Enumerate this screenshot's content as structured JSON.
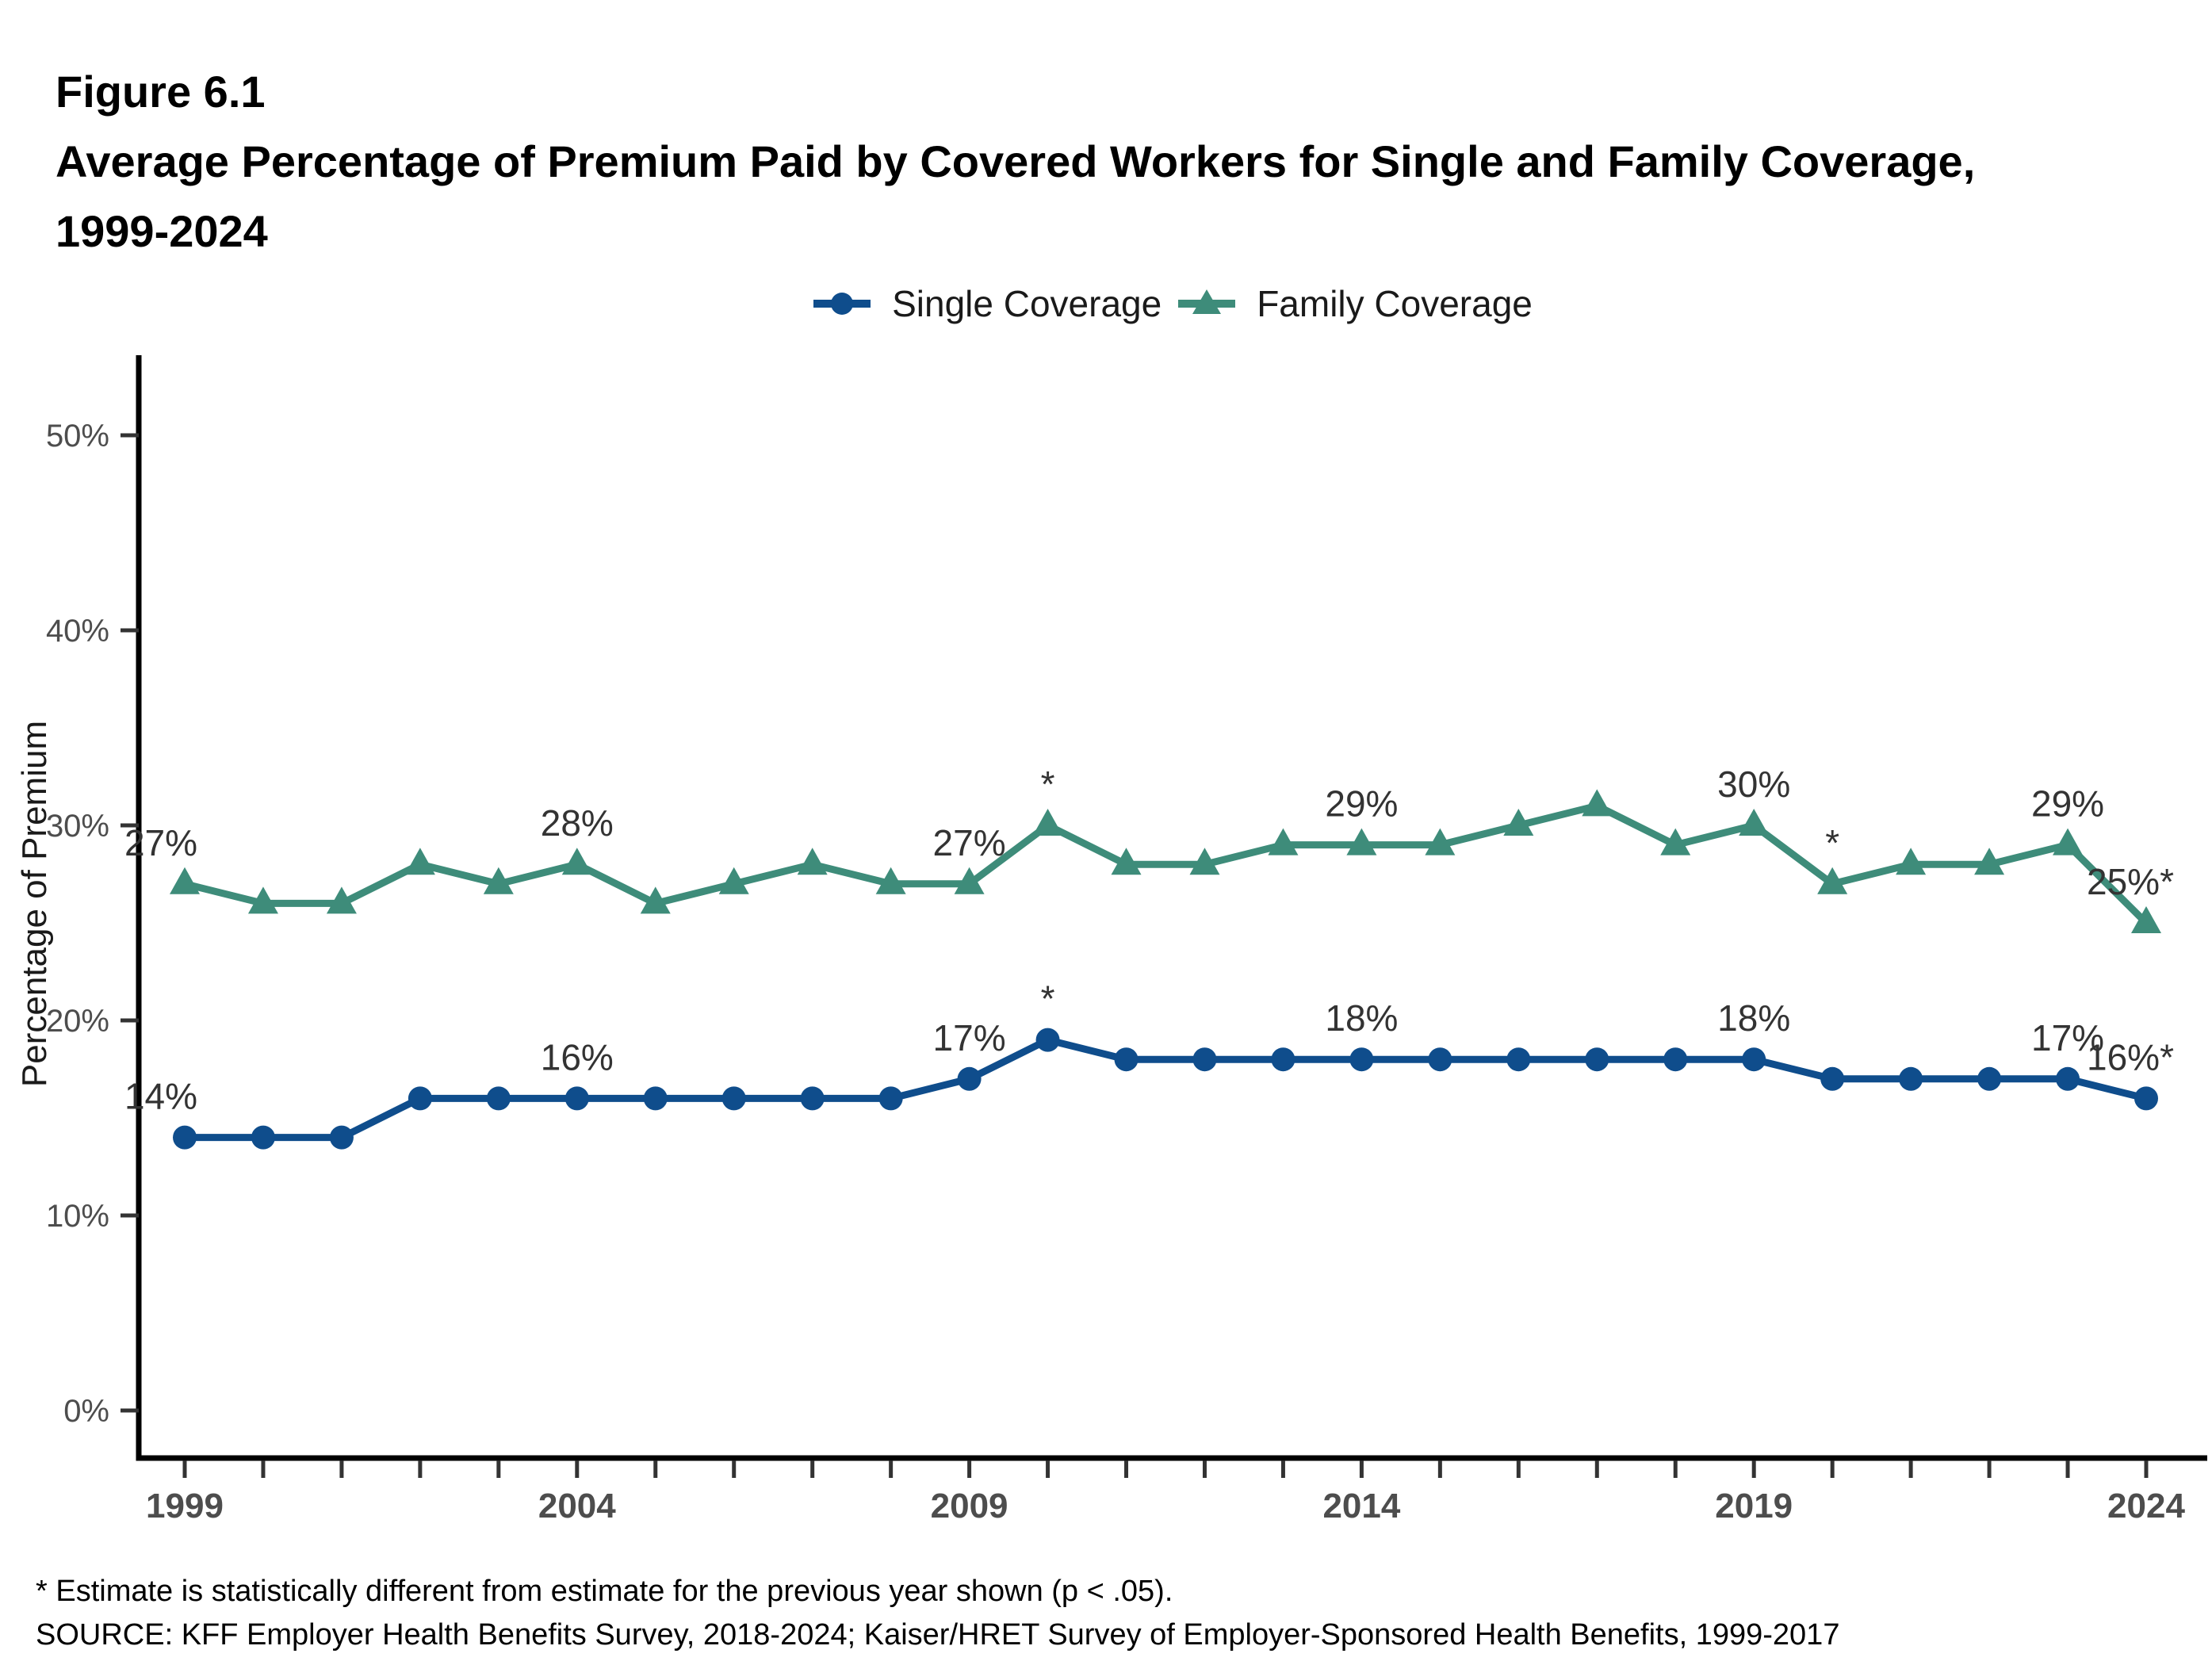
{
  "figure": {
    "number": "Figure 6.1",
    "title": "Average Percentage of Premium Paid by Covered Workers for Single and Family Coverage,",
    "title_years": "1999-2024"
  },
  "legend": {
    "items": [
      {
        "label": "Single Coverage",
        "color": "#0f4d8c",
        "marker": "circle"
      },
      {
        "label": "Family Coverage",
        "color": "#3e8c7a",
        "marker": "triangle"
      }
    ]
  },
  "chart_data": {
    "type": "line",
    "x": [
      1999,
      2000,
      2001,
      2002,
      2003,
      2004,
      2005,
      2006,
      2007,
      2008,
      2009,
      2010,
      2011,
      2012,
      2013,
      2014,
      2015,
      2016,
      2017,
      2018,
      2019,
      2020,
      2021,
      2022,
      2023,
      2024
    ],
    "series": [
      {
        "name": "Single Coverage",
        "marker": "circle",
        "color": "#0f4d8c",
        "values": [
          14,
          14,
          14,
          16,
          16,
          16,
          16,
          16,
          16,
          16,
          17,
          19,
          18,
          18,
          18,
          18,
          18,
          18,
          18,
          18,
          18,
          17,
          17,
          17,
          17,
          16
        ]
      },
      {
        "name": "Family Coverage",
        "marker": "triangle",
        "color": "#3e8c7a",
        "values": [
          27,
          26,
          26,
          28,
          27,
          28,
          26,
          27,
          28,
          27,
          27,
          30,
          28,
          28,
          29,
          29,
          29,
          30,
          31,
          29,
          30,
          27,
          28,
          28,
          29,
          25
        ]
      }
    ],
    "title": "Average Percentage of Premium Paid by Covered Workers for Single and Family Coverage, 1999-2024",
    "xlabel": "",
    "ylabel": "Percentage of Premium",
    "ylim": [
      0,
      50
    ],
    "yticks": [
      0,
      10,
      20,
      30,
      40,
      50
    ],
    "ytick_suffix": "%",
    "xticks_labeled": [
      1999,
      2004,
      2009,
      2014,
      2019,
      2024
    ],
    "grid": false,
    "legend_position": "top",
    "annotations": [
      {
        "series": 0,
        "year": 1999,
        "text": "14%",
        "dx": -30
      },
      {
        "series": 0,
        "year": 2004,
        "text": "16%",
        "dx": 0
      },
      {
        "series": 0,
        "year": 2009,
        "text": "17%",
        "dx": 0
      },
      {
        "series": 0,
        "year": 2010,
        "text": "*",
        "dx": 0
      },
      {
        "series": 0,
        "year": 2014,
        "text": "18%",
        "dx": 0
      },
      {
        "series": 0,
        "year": 2019,
        "text": "18%",
        "dx": 0
      },
      {
        "series": 0,
        "year": 2023,
        "text": "17%",
        "dx": 0
      },
      {
        "series": 0,
        "year": 2024,
        "text": "16%*",
        "dx": -20
      },
      {
        "series": 1,
        "year": 1999,
        "text": "27%",
        "dx": -30
      },
      {
        "series": 1,
        "year": 2004,
        "text": "28%",
        "dx": 0
      },
      {
        "series": 1,
        "year": 2009,
        "text": "27%",
        "dx": 0
      },
      {
        "series": 1,
        "year": 2010,
        "text": "*",
        "dx": 0
      },
      {
        "series": 1,
        "year": 2014,
        "text": "29%",
        "dx": 0
      },
      {
        "series": 1,
        "year": 2019,
        "text": "30%",
        "dx": 0
      },
      {
        "series": 1,
        "year": 2020,
        "text": "*",
        "dx": 0
      },
      {
        "series": 1,
        "year": 2023,
        "text": "29%",
        "dx": 0
      },
      {
        "series": 1,
        "year": 2024,
        "text": "25%*",
        "dx": -20
      }
    ]
  },
  "footnotes": {
    "asterisk_note": "* Estimate is statistically different from estimate for the previous year shown (p < .05).",
    "source": "SOURCE: KFF Employer Health Benefits Survey, 2018-2024; Kaiser/HRET Survey of Employer-Sponsored Health Benefits, 1999-2017"
  },
  "colors": {
    "single": "#0f4d8c",
    "family": "#3e8c7a",
    "axis": "#000000",
    "tick": "#333333",
    "tick_label": "#4d4d4d",
    "data_label": "#333333"
  }
}
